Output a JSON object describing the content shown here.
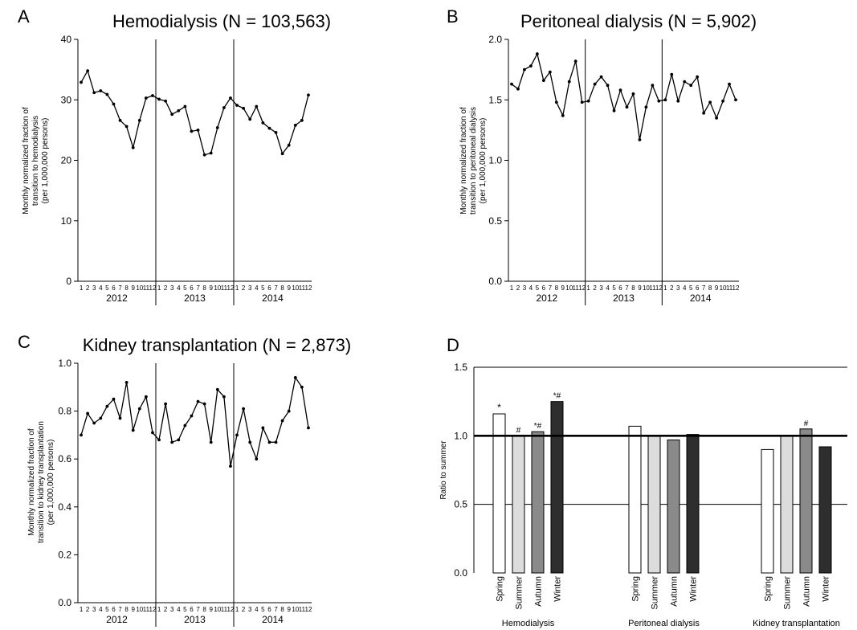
{
  "chart_data": [
    {
      "panel": "A",
      "type": "line",
      "title": "Hemodialysis (N = 103,563)",
      "ylabel": "Monthly normalized fraction of transition to hemodialysis (per 1,000,000 persons)",
      "ylabel_lines": [
        "Monthly normalized fraction of",
        "transition to hemodialysis",
        "(per 1,000,000 persons)"
      ],
      "ylim": [
        0,
        40
      ],
      "yticks": [
        "0",
        "10",
        "20",
        "30",
        "40"
      ],
      "years": [
        "2012",
        "2013",
        "2014"
      ],
      "months": [
        "1",
        "2",
        "3",
        "4",
        "5",
        "6",
        "7",
        "8",
        "9",
        "10",
        "11",
        "12"
      ],
      "values": [
        32.9,
        34.8,
        31.2,
        31.5,
        30.9,
        29.3,
        26.6,
        25.6,
        22.1,
        26.6,
        30.3,
        30.7,
        30.1,
        29.8,
        27.6,
        28.2,
        28.9,
        24.8,
        25.0,
        20.9,
        21.2,
        25.4,
        28.7,
        30.3,
        29.1,
        28.6,
        26.8,
        28.9,
        26.2,
        25.3,
        24.6,
        21.1,
        22.5,
        25.8,
        26.6,
        30.8
      ]
    },
    {
      "panel": "B",
      "type": "line",
      "title": "Peritoneal dialysis (N = 5,902)",
      "ylabel": "Monthly normalized fraction of transition to peritoneal dialysis (per 1,000,000 persons)",
      "ylabel_lines": [
        "Monthly normalized fraction of",
        "transition to peritoneal dialysis",
        "(per 1,000,000 persons)"
      ],
      "ylim": [
        0,
        2.0
      ],
      "yticks": [
        "0.0",
        "0.5",
        "1.0",
        "1.5",
        "2.0"
      ],
      "years": [
        "2012",
        "2013",
        "2014"
      ],
      "months": [
        "1",
        "2",
        "3",
        "4",
        "5",
        "6",
        "7",
        "8",
        "9",
        "10",
        "11",
        "12"
      ],
      "values": [
        1.63,
        1.59,
        1.75,
        1.78,
        1.88,
        1.66,
        1.73,
        1.48,
        1.37,
        1.65,
        1.82,
        1.48,
        1.49,
        1.63,
        1.69,
        1.62,
        1.41,
        1.58,
        1.44,
        1.55,
        1.17,
        1.44,
        1.62,
        1.49,
        1.5,
        1.71,
        1.49,
        1.65,
        1.62,
        1.69,
        1.39,
        1.48,
        1.35,
        1.49,
        1.63,
        1.5
      ]
    },
    {
      "panel": "C",
      "type": "line",
      "title": "Kidney transplantation (N = 2,873)",
      "ylabel": "Monthly normalized fraction of transition to kidney transplantation (per 1,000,000 persons)",
      "ylabel_lines": [
        "Monthly normalized fraction of",
        "transition to kidney transplantation",
        "(per 1,000,000 persons)"
      ],
      "ylim": [
        0,
        1.0
      ],
      "yticks": [
        "0.0",
        "0.2",
        "0.4",
        "0.6",
        "0.8",
        "1.0"
      ],
      "years": [
        "2012",
        "2013",
        "2014"
      ],
      "months": [
        "1",
        "2",
        "3",
        "4",
        "5",
        "6",
        "7",
        "8",
        "9",
        "10",
        "11",
        "12"
      ],
      "values": [
        0.7,
        0.79,
        0.75,
        0.77,
        0.82,
        0.85,
        0.77,
        0.92,
        0.72,
        0.81,
        0.86,
        0.71,
        0.68,
        0.83,
        0.67,
        0.68,
        0.74,
        0.78,
        0.84,
        0.83,
        0.67,
        0.89,
        0.86,
        0.57,
        0.7,
        0.81,
        0.67,
        0.6,
        0.73,
        0.67,
        0.67,
        0.76,
        0.8,
        0.94,
        0.9,
        0.73
      ]
    },
    {
      "panel": "D",
      "type": "bar",
      "ylabel": "Ratio to summer",
      "ylim": [
        0,
        1.5
      ],
      "yticks": [
        "0.0",
        "0.5",
        "1.0",
        "1.5"
      ],
      "seasons": [
        "Spring",
        "Summer",
        "Autumn",
        "Winter"
      ],
      "season_colors": [
        "#ffffff",
        "#dcdcdc",
        "#8a8a8a",
        "#2e2e2e"
      ],
      "groups": [
        {
          "name": "Hemodialysis",
          "values": [
            1.16,
            1.0,
            1.03,
            1.25
          ],
          "marks": [
            "*",
            "#",
            "*#",
            "*#"
          ]
        },
        {
          "name": "Peritoneal dialysis",
          "values": [
            1.07,
            1.0,
            0.97,
            1.01
          ],
          "marks": [
            "",
            "",
            "",
            ""
          ]
        },
        {
          "name": "Kidney transplantation",
          "values": [
            0.9,
            1.0,
            1.05,
            0.92
          ],
          "marks": [
            "",
            "",
            "#",
            ""
          ]
        }
      ],
      "reference_line": 1.0
    }
  ],
  "panel_labels": [
    "A",
    "B",
    "C",
    "D"
  ]
}
